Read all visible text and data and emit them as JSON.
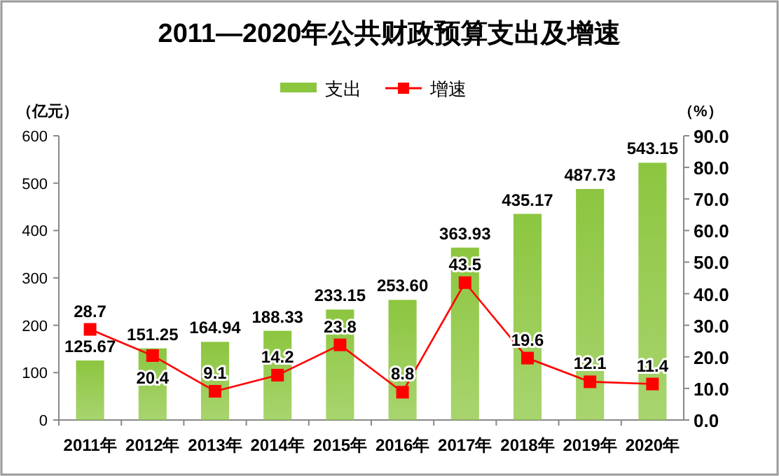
{
  "chart_data": {
    "type": "bar",
    "title": "2011—2020年公共财政预算支出及增速",
    "ylabel": "（亿元）",
    "y2label": "（%）",
    "categories": [
      "2011年",
      "2012年",
      "2013年",
      "2014年",
      "2015年",
      "2016年",
      "2017年",
      "2018年",
      "2019年",
      "2020年"
    ],
    "series": [
      {
        "name": "支出",
        "color": "#8cc63f",
        "values": [
          125.67,
          151.25,
          164.94,
          188.33,
          233.15,
          253.6,
          363.93,
          435.17,
          487.73,
          543.15
        ],
        "value_labels": [
          "125.67",
          "151.25",
          "164.94",
          "188.33",
          "233.15",
          "253.60",
          "363.93",
          "435.17",
          "487.73",
          "543.15"
        ]
      },
      {
        "name": "增速",
        "type": "line",
        "axis": "y2",
        "color": "#ff0000",
        "marker": "square",
        "values": [
          28.7,
          20.4,
          9.1,
          14.2,
          23.8,
          8.8,
          43.5,
          19.6,
          12.1,
          11.4
        ],
        "value_labels": [
          "28.7",
          "20.4",
          "9.1",
          "14.2",
          "23.8",
          "8.8",
          "43.5",
          "19.6",
          "12.1",
          "11.4"
        ]
      }
    ],
    "ylim": [
      0,
      600
    ],
    "yticks": [
      0,
      100,
      200,
      300,
      400,
      500,
      600
    ],
    "y2lim": [
      0,
      90
    ],
    "y2ticks": [
      {
        "value": 0,
        "label": "0.0"
      },
      {
        "value": 10,
        "label": "10.0"
      },
      {
        "value": 20,
        "label": "20.0"
      },
      {
        "value": 30,
        "label": "30.0"
      },
      {
        "value": 40,
        "label": "40.0"
      },
      {
        "value": 50,
        "label": "50.0"
      },
      {
        "value": 60,
        "label": "60.0"
      },
      {
        "value": 70,
        "label": "70.0"
      },
      {
        "value": 80,
        "label": "80.0"
      },
      {
        "value": 90,
        "label": "90.0"
      }
    ],
    "legend": "top",
    "grid": false
  }
}
